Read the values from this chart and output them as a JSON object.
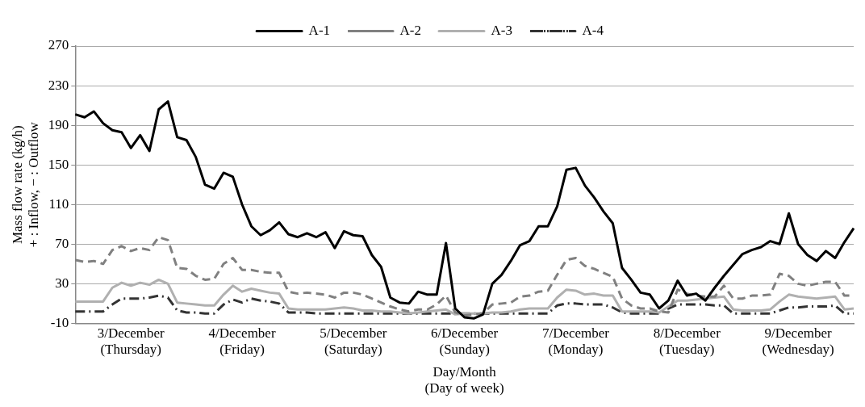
{
  "chart_data": {
    "type": "line",
    "xlabel": "Day/Month\n(Day of week)",
    "ylabel": "Mass flow rate (kg/h)\n+ : Inflow, − : Outflow",
    "categories": [
      null,
      null,
      null,
      null,
      null,
      null,
      "3/December\n(Thursday)",
      null,
      null,
      null,
      null,
      null,
      null,
      null,
      null,
      null,
      null,
      null,
      "4/December\n(Friday)",
      null,
      null,
      null,
      null,
      null,
      null,
      null,
      null,
      null,
      null,
      null,
      "5/December\n(Saturday)",
      null,
      null,
      null,
      null,
      null,
      null,
      null,
      null,
      null,
      null,
      null,
      "6/December\n(Sunday)",
      null,
      null,
      null,
      null,
      null,
      null,
      null,
      null,
      null,
      null,
      null,
      "7/December\n(Monday)",
      null,
      null,
      null,
      null,
      null,
      null,
      null,
      null,
      null,
      null,
      null,
      "8/December\n(Tuesday)",
      null,
      null,
      null,
      null,
      null,
      null,
      null,
      null,
      null,
      null,
      null,
      "9/December\n(Wednesday)",
      null,
      null,
      null,
      null,
      null,
      null
    ],
    "ylim": [
      -10,
      270
    ],
    "yticks": [
      -10,
      30,
      70,
      110,
      150,
      190,
      230,
      270
    ],
    "grid": "y",
    "legend": "top",
    "marker": "none",
    "series": [
      {
        "name": "A-1",
        "color": "#000000",
        "line_style": "solid",
        "values": [
          201,
          198,
          204,
          192,
          185,
          183,
          167,
          180,
          164,
          206,
          214,
          178,
          175,
          158,
          130,
          126,
          142,
          138,
          110,
          88,
          79,
          84,
          92,
          80,
          77,
          81,
          77,
          82,
          66,
          83,
          79,
          78,
          59,
          47,
          16,
          11,
          10,
          22,
          19,
          19,
          71,
          5,
          -4,
          -5,
          -1,
          30,
          39,
          53,
          69,
          73,
          88,
          88,
          108,
          145,
          147,
          129,
          117,
          103,
          91,
          46,
          34,
          21,
          19,
          5,
          13,
          33,
          18,
          20,
          13,
          26,
          38,
          49,
          60,
          64,
          67,
          73,
          70,
          101,
          70,
          59,
          53,
          63,
          56,
          72,
          86
        ]
      },
      {
        "name": "A-2",
        "color": "#808080",
        "line_style": "dashed",
        "values": [
          54,
          52,
          53,
          50,
          64,
          68,
          63,
          66,
          64,
          77,
          74,
          46,
          45,
          38,
          34,
          35,
          50,
          56,
          44,
          44,
          42,
          41,
          41,
          22,
          20,
          21,
          20,
          19,
          16,
          21,
          21,
          19,
          15,
          11,
          7,
          4,
          2,
          4,
          4,
          9,
          18,
          1,
          -2,
          -1,
          0,
          9,
          10,
          11,
          17,
          18,
          22,
          23,
          39,
          54,
          56,
          48,
          45,
          41,
          37,
          15,
          8,
          5,
          5,
          2,
          1,
          24,
          20,
          18,
          17,
          17,
          28,
          15,
          15,
          18,
          18,
          19,
          40,
          38,
          30,
          28,
          30,
          32,
          32,
          18,
          18
        ]
      },
      {
        "name": "A-3",
        "color": "#b0b0b0",
        "line_style": "solid",
        "values": [
          12,
          12,
          12,
          12,
          26,
          31,
          28,
          31,
          29,
          34,
          30,
          11,
          10,
          9,
          8,
          8,
          19,
          28,
          22,
          25,
          23,
          21,
          20,
          5,
          4,
          4,
          4,
          4,
          5,
          6,
          5,
          3,
          3,
          2,
          2,
          1,
          0,
          1,
          2,
          3,
          4,
          -1,
          0,
          0,
          0,
          1,
          1,
          2,
          4,
          5,
          5,
          5,
          16,
          24,
          23,
          19,
          20,
          18,
          18,
          2,
          2,
          2,
          2,
          1,
          7,
          13,
          13,
          14,
          15,
          16,
          17,
          4,
          3,
          3,
          3,
          4,
          12,
          19,
          17,
          16,
          15,
          16,
          17,
          4,
          5
        ]
      },
      {
        "name": "A-4",
        "color": "#333333",
        "line_style": "dashdot",
        "values": [
          2,
          2,
          2,
          2,
          9,
          15,
          15,
          15,
          16,
          18,
          16,
          3,
          1,
          1,
          0,
          0,
          9,
          14,
          11,
          15,
          13,
          12,
          10,
          1,
          1,
          1,
          0,
          0,
          0,
          0,
          0,
          0,
          0,
          0,
          0,
          0,
          0,
          0,
          0,
          0,
          0,
          0,
          0,
          0,
          0,
          0,
          0,
          0,
          0,
          0,
          0,
          0,
          8,
          10,
          10,
          9,
          9,
          9,
          6,
          1,
          0,
          0,
          0,
          0,
          5,
          9,
          9,
          9,
          9,
          8,
          8,
          0,
          0,
          0,
          0,
          0,
          3,
          6,
          6,
          7,
          7,
          7,
          8,
          0,
          0
        ]
      }
    ]
  }
}
